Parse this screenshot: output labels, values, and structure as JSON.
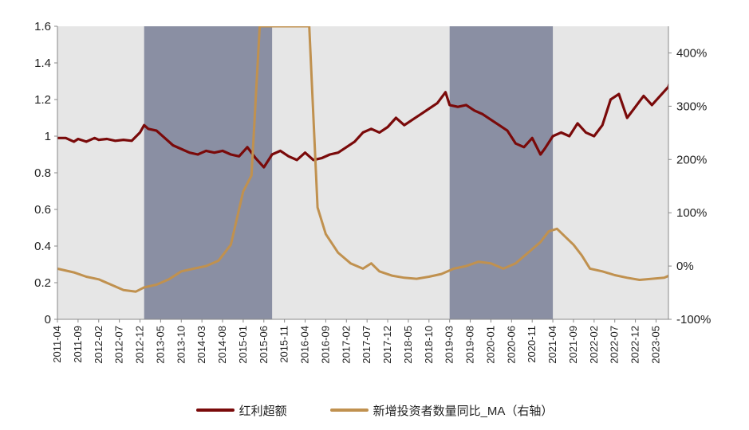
{
  "chart_data": {
    "type": "line",
    "title": "",
    "xlabel": "",
    "x_start": "2011-04",
    "x_end": "2023-08",
    "x_ticks": [
      "2011-04",
      "2011-09",
      "2012-02",
      "2012-07",
      "2012-12",
      "2013-05",
      "2013-10",
      "2014-03",
      "2014-08",
      "2015-01",
      "2015-06",
      "2015-11",
      "2016-04",
      "2016-09",
      "2017-02",
      "2017-07",
      "2017-12",
      "2018-05",
      "2018-10",
      "2019-03",
      "2019-08",
      "2020-01",
      "2020-06",
      "2020-11",
      "2021-04",
      "2021-09",
      "2022-02",
      "2022-07",
      "2022-12",
      "2023-05"
    ],
    "y_left": {
      "ticks": [
        "0",
        "0.2",
        "0.4",
        "0.6",
        "0.8",
        "1",
        "1.2",
        "1.4",
        "1.6"
      ],
      "lim": [
        0,
        1.6
      ]
    },
    "y_right": {
      "ticks": [
        "-100%",
        "0%",
        "100%",
        "200%",
        "300%",
        "400%"
      ],
      "lim": [
        -100,
        450
      ],
      "unit": "%"
    },
    "shaded_periods": [
      {
        "start": "2013-01",
        "end": "2015-08"
      },
      {
        "start": "2019-03",
        "end": "2021-04"
      }
    ],
    "background_color": "#e6e6e6",
    "shade_color": "#8a8fa3",
    "series": [
      {
        "name": "红利超额",
        "axis": "left",
        "color": "#7a0a0a",
        "points": [
          [
            "2011-04",
            0.99
          ],
          [
            "2011-06",
            0.99
          ],
          [
            "2011-08",
            0.97
          ],
          [
            "2011-09",
            0.985
          ],
          [
            "2011-11",
            0.97
          ],
          [
            "2012-01",
            0.99
          ],
          [
            "2012-02",
            0.98
          ],
          [
            "2012-04",
            0.985
          ],
          [
            "2012-06",
            0.975
          ],
          [
            "2012-08",
            0.98
          ],
          [
            "2012-10",
            0.975
          ],
          [
            "2012-12",
            1.02
          ],
          [
            "2013-01",
            1.06
          ],
          [
            "2013-02",
            1.04
          ],
          [
            "2013-04",
            1.03
          ],
          [
            "2013-06",
            0.99
          ],
          [
            "2013-08",
            0.95
          ],
          [
            "2013-10",
            0.93
          ],
          [
            "2013-12",
            0.91
          ],
          [
            "2014-02",
            0.9
          ],
          [
            "2014-04",
            0.92
          ],
          [
            "2014-06",
            0.91
          ],
          [
            "2014-08",
            0.92
          ],
          [
            "2014-10",
            0.9
          ],
          [
            "2014-12",
            0.89
          ],
          [
            "2015-02",
            0.94
          ],
          [
            "2015-04",
            0.88
          ],
          [
            "2015-06",
            0.83
          ],
          [
            "2015-08",
            0.9
          ],
          [
            "2015-10",
            0.92
          ],
          [
            "2015-12",
            0.89
          ],
          [
            "2016-02",
            0.87
          ],
          [
            "2016-04",
            0.91
          ],
          [
            "2016-06",
            0.87
          ],
          [
            "2016-08",
            0.88
          ],
          [
            "2016-10",
            0.9
          ],
          [
            "2016-12",
            0.91
          ],
          [
            "2017-02",
            0.94
          ],
          [
            "2017-04",
            0.97
          ],
          [
            "2017-06",
            1.02
          ],
          [
            "2017-08",
            1.04
          ],
          [
            "2017-10",
            1.02
          ],
          [
            "2017-12",
            1.05
          ],
          [
            "2018-02",
            1.1
          ],
          [
            "2018-04",
            1.06
          ],
          [
            "2018-06",
            1.09
          ],
          [
            "2018-08",
            1.12
          ],
          [
            "2018-10",
            1.15
          ],
          [
            "2018-12",
            1.18
          ],
          [
            "2019-02",
            1.24
          ],
          [
            "2019-03",
            1.17
          ],
          [
            "2019-05",
            1.16
          ],
          [
            "2019-07",
            1.17
          ],
          [
            "2019-09",
            1.14
          ],
          [
            "2019-11",
            1.12
          ],
          [
            "2020-01",
            1.09
          ],
          [
            "2020-03",
            1.06
          ],
          [
            "2020-05",
            1.03
          ],
          [
            "2020-07",
            0.96
          ],
          [
            "2020-09",
            0.94
          ],
          [
            "2020-11",
            0.99
          ],
          [
            "2021-01",
            0.9
          ],
          [
            "2021-02",
            0.93
          ],
          [
            "2021-04",
            1.0
          ],
          [
            "2021-06",
            1.02
          ],
          [
            "2021-08",
            1.0
          ],
          [
            "2021-10",
            1.07
          ],
          [
            "2021-12",
            1.02
          ],
          [
            "2022-02",
            1.0
          ],
          [
            "2022-04",
            1.06
          ],
          [
            "2022-06",
            1.2
          ],
          [
            "2022-08",
            1.23
          ],
          [
            "2022-10",
            1.1
          ],
          [
            "2022-12",
            1.16
          ],
          [
            "2023-02",
            1.22
          ],
          [
            "2023-04",
            1.17
          ],
          [
            "2023-06",
            1.22
          ],
          [
            "2023-08",
            1.27
          ],
          [
            "2023-09",
            1.35
          ]
        ]
      },
      {
        "name": "新增投资者数量同比_MA（右轴）",
        "axis": "right",
        "color": "#c0914f",
        "points": [
          [
            "2011-04",
            -5
          ],
          [
            "2011-08",
            -12
          ],
          [
            "2011-11",
            -20
          ],
          [
            "2012-02",
            -25
          ],
          [
            "2012-05",
            -35
          ],
          [
            "2012-08",
            -45
          ],
          [
            "2012-11",
            -48
          ],
          [
            "2013-01",
            -40
          ],
          [
            "2013-04",
            -35
          ],
          [
            "2013-07",
            -25
          ],
          [
            "2013-10",
            -10
          ],
          [
            "2014-01",
            -5
          ],
          [
            "2014-04",
            0
          ],
          [
            "2014-07",
            10
          ],
          [
            "2014-10",
            40
          ],
          [
            "2015-01",
            140
          ],
          [
            "2015-03",
            170
          ],
          [
            "2015-05",
            450
          ],
          [
            "2016-05",
            450
          ],
          [
            "2016-07",
            110
          ],
          [
            "2016-09",
            60
          ],
          [
            "2016-12",
            25
          ],
          [
            "2017-03",
            5
          ],
          [
            "2017-06",
            -5
          ],
          [
            "2017-08",
            5
          ],
          [
            "2017-10",
            -10
          ],
          [
            "2018-01",
            -18
          ],
          [
            "2018-04",
            -22
          ],
          [
            "2018-07",
            -24
          ],
          [
            "2018-10",
            -20
          ],
          [
            "2019-01",
            -15
          ],
          [
            "2019-04",
            -5
          ],
          [
            "2019-07",
            0
          ],
          [
            "2019-10",
            8
          ],
          [
            "2020-01",
            5
          ],
          [
            "2020-04",
            -5
          ],
          [
            "2020-07",
            5
          ],
          [
            "2020-10",
            25
          ],
          [
            "2021-01",
            45
          ],
          [
            "2021-03",
            65
          ],
          [
            "2021-05",
            70
          ],
          [
            "2021-07",
            55
          ],
          [
            "2021-09",
            40
          ],
          [
            "2021-11",
            20
          ],
          [
            "2022-01",
            -5
          ],
          [
            "2022-04",
            -10
          ],
          [
            "2022-07",
            -17
          ],
          [
            "2022-10",
            -22
          ],
          [
            "2023-01",
            -26
          ],
          [
            "2023-04",
            -24
          ],
          [
            "2023-07",
            -22
          ],
          [
            "2023-09",
            -15
          ]
        ]
      }
    ],
    "legend": {
      "position": "bottom"
    }
  }
}
